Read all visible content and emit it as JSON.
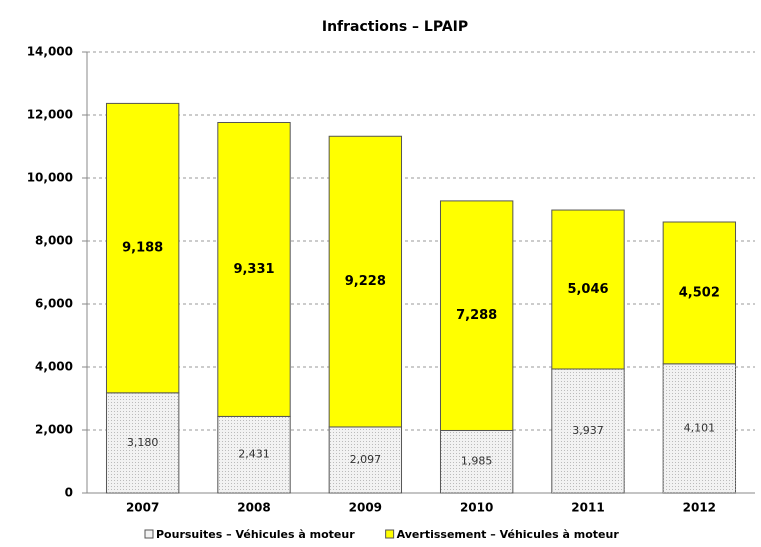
{
  "chart_data": {
    "type": "stacked_bar",
    "title": "Infractions – LPAIP",
    "categories": [
      "2007",
      "2008",
      "2009",
      "2010",
      "2011",
      "2012"
    ],
    "series": [
      {
        "name": "Poursuites – Véhicules à moteur",
        "color": "#f2f2f2",
        "values": [
          3180,
          2431,
          2097,
          1985,
          3937,
          4101
        ],
        "value_labels": [
          "3,180",
          "2,431",
          "2,097",
          "1,985",
          "3,937",
          "4,101"
        ]
      },
      {
        "name": "Avertissement – Véhicules à moteur",
        "color": "#ffff00",
        "values": [
          9188,
          9331,
          9228,
          7288,
          5046,
          4502
        ],
        "value_labels": [
          "9,188",
          "9,331",
          "9,228",
          "7,288",
          "5,046",
          "4,502"
        ]
      }
    ],
    "ylim": [
      0,
      14000
    ],
    "yticks": [
      0,
      {
        "value": 2000,
        "label": "2,000"
      },
      {
        "value": 4000,
        "label": "4,000"
      },
      {
        "value": 6000,
        "label": "6,000"
      },
      {
        "value": 8000,
        "label": "8,000"
      },
      {
        "value": 10000,
        "label": "10,000"
      },
      {
        "value": 12000,
        "label": "12,000"
      },
      {
        "value": 14000,
        "label": "14,000"
      }
    ],
    "grid": true
  }
}
